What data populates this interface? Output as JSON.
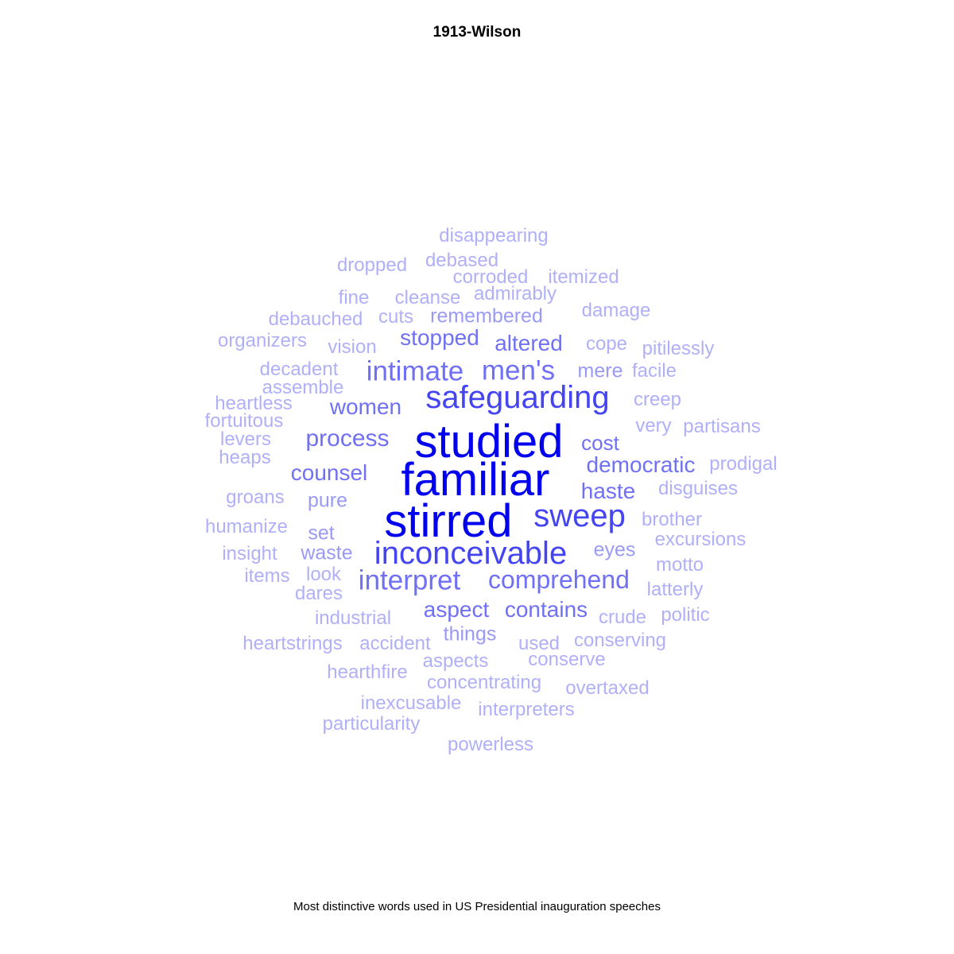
{
  "chart_data": {
    "type": "wordcloud",
    "title": "1913-Wilson",
    "caption": "Most distinctive words used in US Presidential inauguration speeches",
    "colors": {
      "tier1": "#0000ee",
      "tier2": "#4444f2",
      "tier3": "#7070f4",
      "tier4": "#9a9af6",
      "tier5": "#b0b0f8"
    },
    "words": [
      {
        "text": "studied",
        "weight": 1.0
      },
      {
        "text": "familiar",
        "weight": 1.0
      },
      {
        "text": "stirred",
        "weight": 1.0
      },
      {
        "text": "safeguarding",
        "weight": 0.8
      },
      {
        "text": "inconceivable",
        "weight": 0.8
      },
      {
        "text": "sweep",
        "weight": 0.8
      },
      {
        "text": "intimate",
        "weight": 0.65
      },
      {
        "text": "men's",
        "weight": 0.65
      },
      {
        "text": "interpret",
        "weight": 0.65
      },
      {
        "text": "comprehend",
        "weight": 0.6
      },
      {
        "text": "process",
        "weight": 0.55
      },
      {
        "text": "stopped",
        "weight": 0.5
      },
      {
        "text": "altered",
        "weight": 0.5
      },
      {
        "text": "women",
        "weight": 0.5
      },
      {
        "text": "counsel",
        "weight": 0.5
      },
      {
        "text": "democratic",
        "weight": 0.5
      },
      {
        "text": "haste",
        "weight": 0.5
      },
      {
        "text": "aspect",
        "weight": 0.5
      },
      {
        "text": "contains",
        "weight": 0.5
      },
      {
        "text": "cost",
        "weight": 0.45
      },
      {
        "text": "pure",
        "weight": 0.4
      },
      {
        "text": "waste",
        "weight": 0.4
      },
      {
        "text": "eyes",
        "weight": 0.4
      },
      {
        "text": "mere",
        "weight": 0.4
      },
      {
        "text": "remembered",
        "weight": 0.35
      },
      {
        "text": "set",
        "weight": 0.35
      },
      {
        "text": "things",
        "weight": 0.35
      },
      {
        "text": "disappearing",
        "weight": 0.2
      },
      {
        "text": "dropped",
        "weight": 0.2
      },
      {
        "text": "debased",
        "weight": 0.2
      },
      {
        "text": "corroded",
        "weight": 0.2
      },
      {
        "text": "itemized",
        "weight": 0.2
      },
      {
        "text": "fine",
        "weight": 0.2
      },
      {
        "text": "cleanse",
        "weight": 0.2
      },
      {
        "text": "admirably",
        "weight": 0.2
      },
      {
        "text": "damage",
        "weight": 0.2
      },
      {
        "text": "debauched",
        "weight": 0.2
      },
      {
        "text": "cuts",
        "weight": 0.2
      },
      {
        "text": "organizers",
        "weight": 0.2
      },
      {
        "text": "vision",
        "weight": 0.2
      },
      {
        "text": "cope",
        "weight": 0.2
      },
      {
        "text": "pitilessly",
        "weight": 0.2
      },
      {
        "text": "decadent",
        "weight": 0.2
      },
      {
        "text": "facile",
        "weight": 0.2
      },
      {
        "text": "assemble",
        "weight": 0.2
      },
      {
        "text": "heartless",
        "weight": 0.2
      },
      {
        "text": "creep",
        "weight": 0.2
      },
      {
        "text": "fortuitous",
        "weight": 0.2
      },
      {
        "text": "very",
        "weight": 0.2
      },
      {
        "text": "partisans",
        "weight": 0.2
      },
      {
        "text": "levers",
        "weight": 0.2
      },
      {
        "text": "heaps",
        "weight": 0.2
      },
      {
        "text": "prodigal",
        "weight": 0.2
      },
      {
        "text": "disguises",
        "weight": 0.2
      },
      {
        "text": "groans",
        "weight": 0.2
      },
      {
        "text": "brother",
        "weight": 0.2
      },
      {
        "text": "humanize",
        "weight": 0.2
      },
      {
        "text": "excursions",
        "weight": 0.2
      },
      {
        "text": "insight",
        "weight": 0.2
      },
      {
        "text": "motto",
        "weight": 0.2
      },
      {
        "text": "items",
        "weight": 0.2
      },
      {
        "text": "look",
        "weight": 0.2
      },
      {
        "text": "latterly",
        "weight": 0.2
      },
      {
        "text": "dares",
        "weight": 0.2
      },
      {
        "text": "industrial",
        "weight": 0.2
      },
      {
        "text": "crude",
        "weight": 0.2
      },
      {
        "text": "politic",
        "weight": 0.2
      },
      {
        "text": "heartstrings",
        "weight": 0.2
      },
      {
        "text": "accident",
        "weight": 0.2
      },
      {
        "text": "used",
        "weight": 0.2
      },
      {
        "text": "conserving",
        "weight": 0.2
      },
      {
        "text": "aspects",
        "weight": 0.2
      },
      {
        "text": "conserve",
        "weight": 0.2
      },
      {
        "text": "hearthfire",
        "weight": 0.2
      },
      {
        "text": "concentrating",
        "weight": 0.2
      },
      {
        "text": "overtaxed",
        "weight": 0.2
      },
      {
        "text": "inexcusable",
        "weight": 0.2
      },
      {
        "text": "interpreters",
        "weight": 0.2
      },
      {
        "text": "particularity",
        "weight": 0.2
      },
      {
        "text": "powerless",
        "weight": 0.2
      }
    ]
  }
}
